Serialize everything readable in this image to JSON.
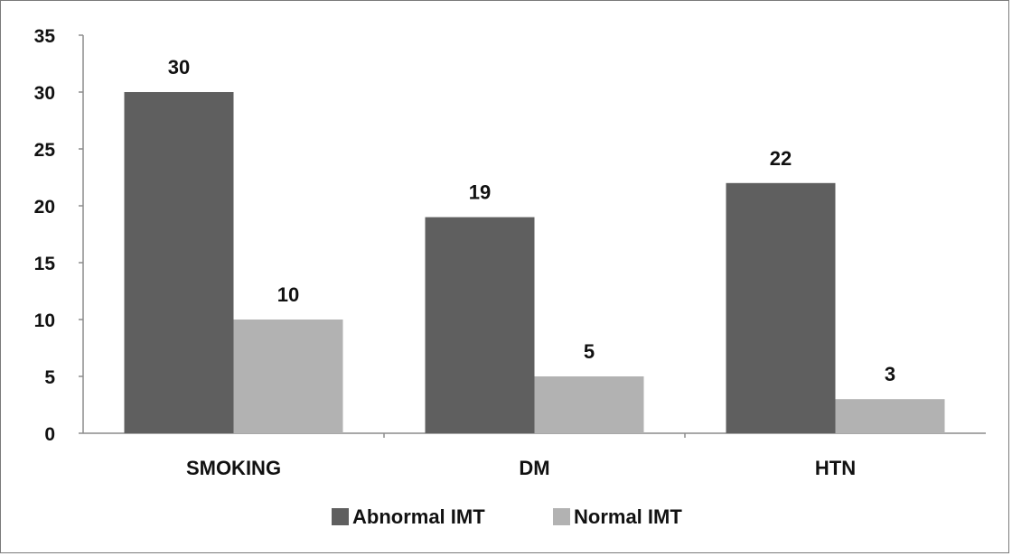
{
  "chart_data": {
    "type": "bar",
    "title": "",
    "xlabel": "",
    "ylabel": "",
    "categories": [
      "SMOKING",
      "DM",
      "HTN"
    ],
    "series": [
      {
        "name": "Abnormal IMT",
        "values": [
          30,
          19,
          22
        ],
        "color": "#5f5f5f"
      },
      {
        "name": "Normal IMT",
        "values": [
          10,
          5,
          3
        ],
        "color": "#b2b2b2"
      }
    ],
    "ylim": [
      0,
      35
    ],
    "yticks": [
      0,
      5,
      10,
      15,
      20,
      25,
      30,
      35
    ],
    "grid": false,
    "legend": "bottom",
    "data_labels": true
  }
}
